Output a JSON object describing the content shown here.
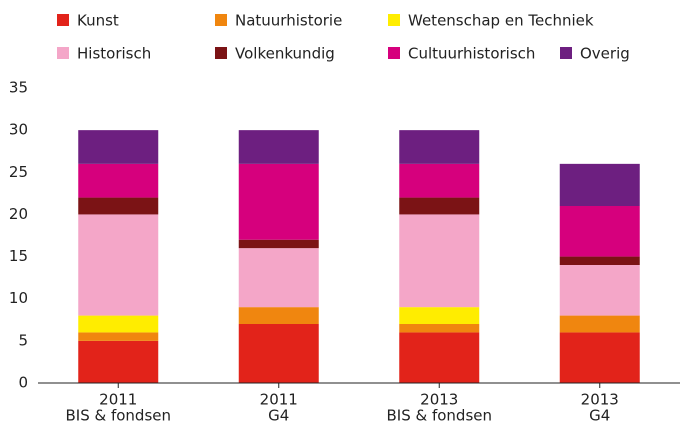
{
  "chart_data": {
    "type": "stacked-bar",
    "categories": [
      [
        "2011",
        "BIS & fondsen"
      ],
      [
        "2011",
        "G4"
      ],
      [
        "2013",
        "BIS & fondsen"
      ],
      [
        "2013",
        "G4"
      ]
    ],
    "series": [
      {
        "name": "Kunst",
        "color": "#e2231a",
        "values": [
          5,
          7,
          6,
          6
        ]
      },
      {
        "name": "Natuurhistorie",
        "color": "#f0860f",
        "values": [
          1,
          2,
          1,
          2
        ]
      },
      {
        "name": "Wetenschap en Techniek",
        "color": "#ffed00",
        "values": [
          2,
          0,
          2,
          0
        ]
      },
      {
        "name": "Historisch",
        "color": "#f4a6c8",
        "values": [
          12,
          7,
          11,
          6
        ]
      },
      {
        "name": "Volkenkundig",
        "color": "#7b1315",
        "values": [
          2,
          1,
          2,
          1
        ]
      },
      {
        "name": "Cultuurhistorisch",
        "color": "#d6007d",
        "values": [
          4,
          9,
          4,
          6
        ]
      },
      {
        "name": "Overig",
        "color": "#6d1f80",
        "values": [
          4,
          4,
          4,
          5
        ]
      }
    ],
    "ylim": [
      0,
      35
    ],
    "yticks": [
      0,
      5,
      10,
      15,
      20,
      25,
      30,
      35
    ],
    "grid": false,
    "legend": "top"
  }
}
